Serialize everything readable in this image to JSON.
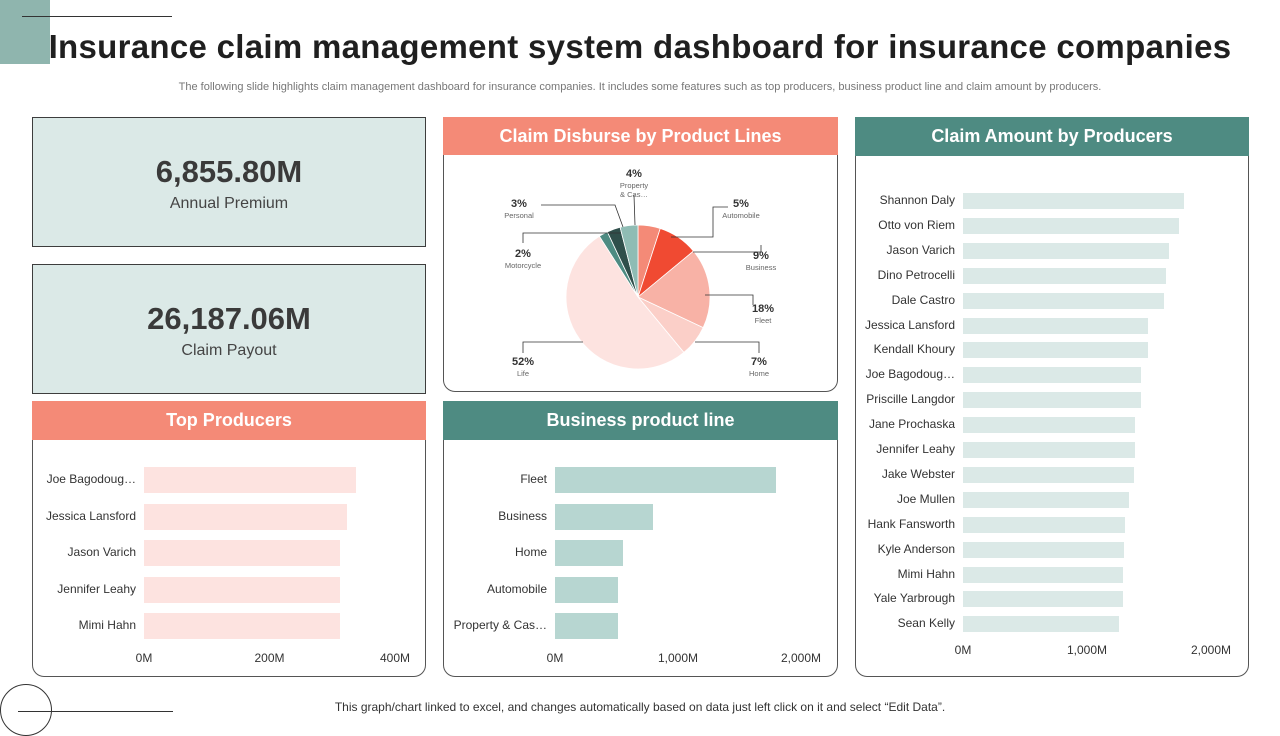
{
  "header": {
    "title": "Insurance claim management system dashboard for insurance companies",
    "subtitle": "The following slide highlights claim management dashboard for insurance companies. It includes  some features such as top producers, business product line and claim amount by producers."
  },
  "kpis": {
    "annual_premium": {
      "value": "6,855.80M",
      "label": "Annual Premium"
    },
    "claim_payout": {
      "value": "26,187.06M",
      "label": "Claim Payout"
    }
  },
  "footer": "This graph/chart linked to excel, and changes automatically based on data just left click on it and select “Edit Data”.",
  "colors": {
    "salmon": "#f48a77",
    "teal": "#4e8b82",
    "pink_bar": "#fde3e0",
    "teal_bar": "#b7d6d1",
    "light_teal_bar": "#dbe9e7"
  },
  "chart_data": [
    {
      "type": "pie",
      "title": "Claim Disburse by Product Lines",
      "slices": [
        {
          "pct": "5%",
          "value": 5,
          "name": "Automobile",
          "color": "#f48a77"
        },
        {
          "pct": "9%",
          "value": 9,
          "name": "Business",
          "color": "#f04a32"
        },
        {
          "pct": "18%",
          "value": 18,
          "name": "Fleet",
          "color": "#f8b2a6"
        },
        {
          "pct": "7%",
          "value": 7,
          "name": "Home",
          "color": "#fbcfc8"
        },
        {
          "pct": "52%",
          "value": 52,
          "name": "Life",
          "color": "#fde3e0"
        },
        {
          "pct": "2%",
          "value": 2,
          "name": "Motorcycle",
          "color": "#4e8b82"
        },
        {
          "pct": "3%",
          "value": 3,
          "name": "Personal",
          "color": "#2f4f4b"
        },
        {
          "pct": "4%",
          "value": 4,
          "name_lines": [
            "Property",
            "& Cas…"
          ],
          "color": "#8fbcb4"
        }
      ]
    },
    {
      "type": "bar",
      "title": "Top Producers",
      "orientation": "horizontal",
      "categories": [
        "Joe Bagodoug…",
        "Jessica Lansford",
        "Jason Varich",
        "Jennifer Leahy",
        "Mimi Hahn"
      ],
      "values": [
        338,
        324,
        312,
        312,
        312
      ],
      "xlim": [
        0,
        400
      ],
      "tick_labels": [
        "0M",
        "200M",
        "400M"
      ]
    },
    {
      "type": "bar",
      "title": "Business product line",
      "orientation": "horizontal",
      "categories": [
        "Fleet",
        "Business",
        "Home",
        "Automobile",
        "Property & Cas…"
      ],
      "values": [
        1800,
        800,
        550,
        510,
        510
      ],
      "xlim": [
        0,
        2200
      ],
      "tick_labels": [
        "0M",
        "1,000M",
        "2,000M"
      ]
    },
    {
      "type": "bar",
      "title": "Claim Amount by Producers",
      "orientation": "horizontal",
      "categories": [
        "Shannon Daly",
        "Otto von Riem",
        "Jason Varich",
        "Dino Petrocelli",
        "Dale Castro",
        "Jessica Lansford",
        "Kendall Khoury",
        "Joe Bagodoug…",
        "Priscille Langdor",
        "Jane Prochaska",
        "Jennifer Leahy",
        "Jake Webster",
        "Joe Mullen",
        "Hank Fansworth",
        "Kyle Anderson",
        "Mimi Hahn",
        "Yale Yarbrough",
        "Sean Kelly"
      ],
      "values": [
        1800,
        1760,
        1680,
        1650,
        1640,
        1510,
        1510,
        1450,
        1450,
        1400,
        1400,
        1390,
        1350,
        1320,
        1310,
        1300,
        1300,
        1270
      ],
      "xlim": [
        0,
        2200
      ],
      "tick_labels": [
        "0M",
        "1,000M",
        "2,000M"
      ]
    }
  ]
}
